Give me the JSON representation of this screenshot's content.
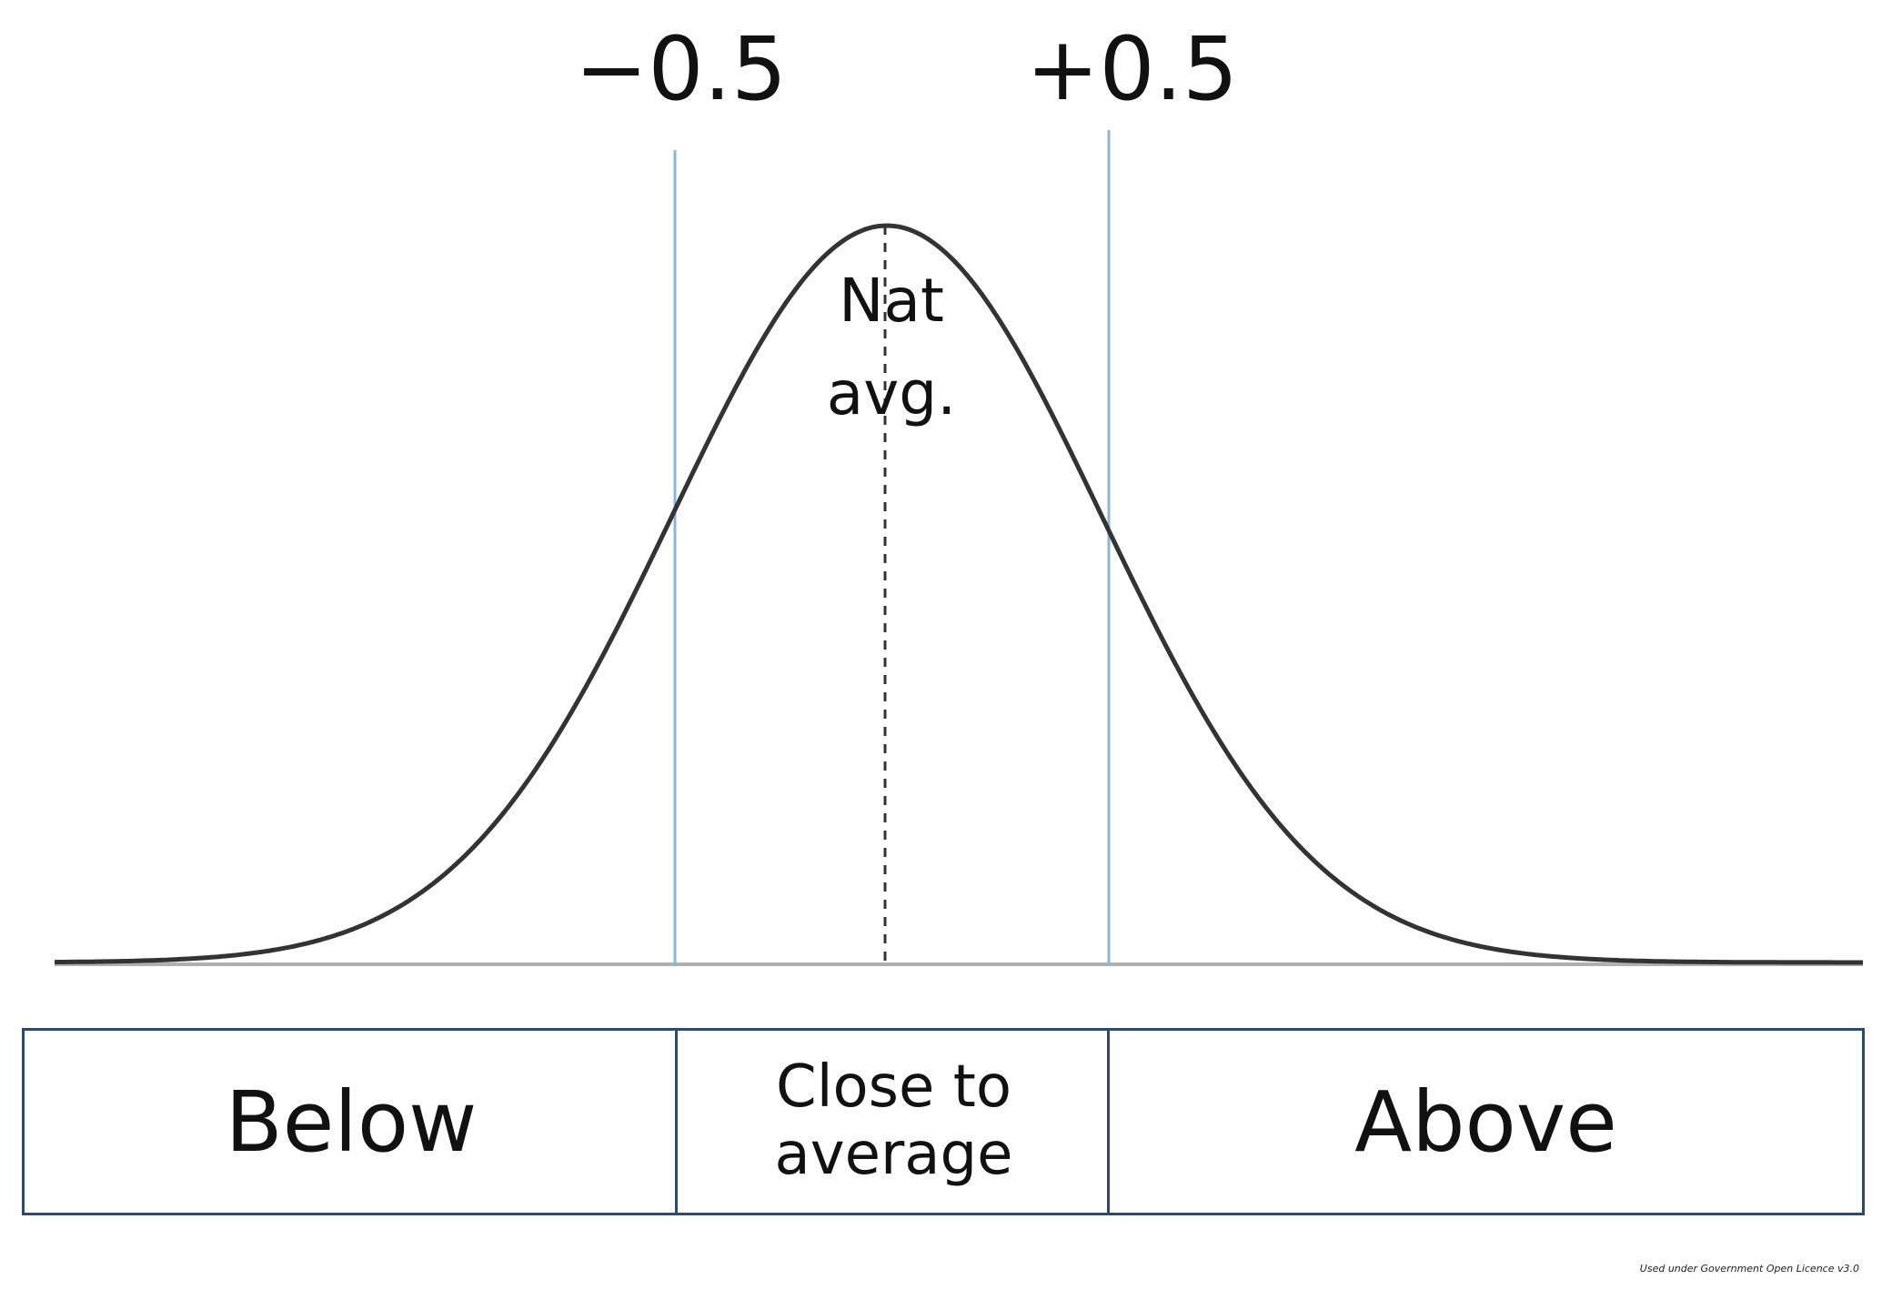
{
  "thresholds": {
    "lower_label": "−0.5",
    "upper_label": "+0.5"
  },
  "peak": {
    "line1": "Nat",
    "line2": "avg."
  },
  "bands": {
    "below": "Below",
    "close_line1": "Close to",
    "close_line2": "average",
    "above": "Above"
  },
  "footer": {
    "licence": "Used under Government Open Licence v3.0"
  },
  "colors": {
    "curve": "#333333",
    "threshold_lines": "#8db4dc",
    "baseline": "#b0b0b0",
    "band_border": "#2f4a66"
  }
}
